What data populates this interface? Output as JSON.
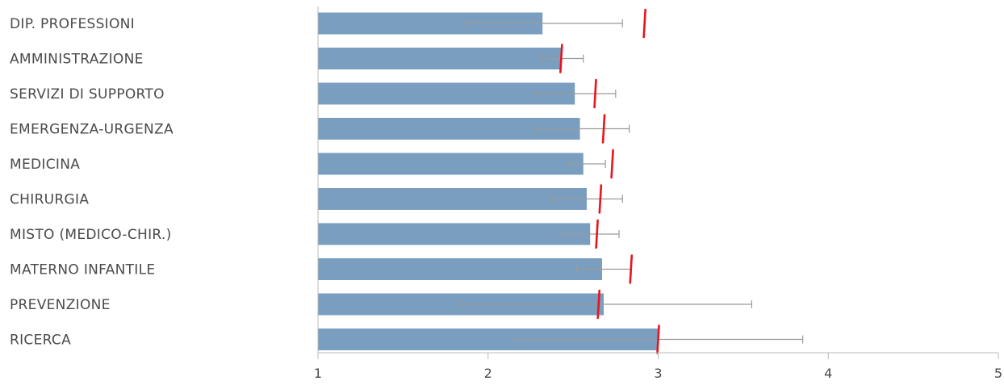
{
  "colors": {
    "bar": "#7a9ebf",
    "error": "#9a9a9a",
    "reference": "#e8141e",
    "axis": "#b8b8b8",
    "text": "#4a4a4a"
  },
  "chart_data": {
    "type": "bar",
    "orientation": "horizontal",
    "categories": [
      "DIP. PROFESSIONI",
      "AMMINISTRAZIONE",
      "SERVIZI DI SUPPORTO",
      "EMERGENZA-URGENZA",
      "MEDICINA",
      "CHIRURGIA",
      "MISTO (MEDICO-CHIR.)",
      "MATERNO INFANTILE",
      "PREVENZIONE",
      "RICERCA"
    ],
    "values": [
      2.32,
      2.43,
      2.51,
      2.54,
      2.56,
      2.58,
      2.6,
      2.67,
      2.68,
      3.0
    ],
    "error_low": [
      1.87,
      2.31,
      2.27,
      2.27,
      2.47,
      2.37,
      2.42,
      2.52,
      1.83,
      2.15
    ],
    "error_high": [
      2.79,
      2.56,
      2.75,
      2.83,
      2.69,
      2.79,
      2.77,
      2.84,
      3.55,
      3.85
    ],
    "reference": [
      2.92,
      2.43,
      2.63,
      2.68,
      2.73,
      2.66,
      2.64,
      2.84,
      2.65,
      3.0
    ],
    "xlim": [
      1,
      5
    ],
    "xticks": [
      "1",
      "2",
      "3",
      "4",
      "5"
    ],
    "title": "",
    "xlabel": "",
    "ylabel": "",
    "grid": false,
    "legend": false
  }
}
